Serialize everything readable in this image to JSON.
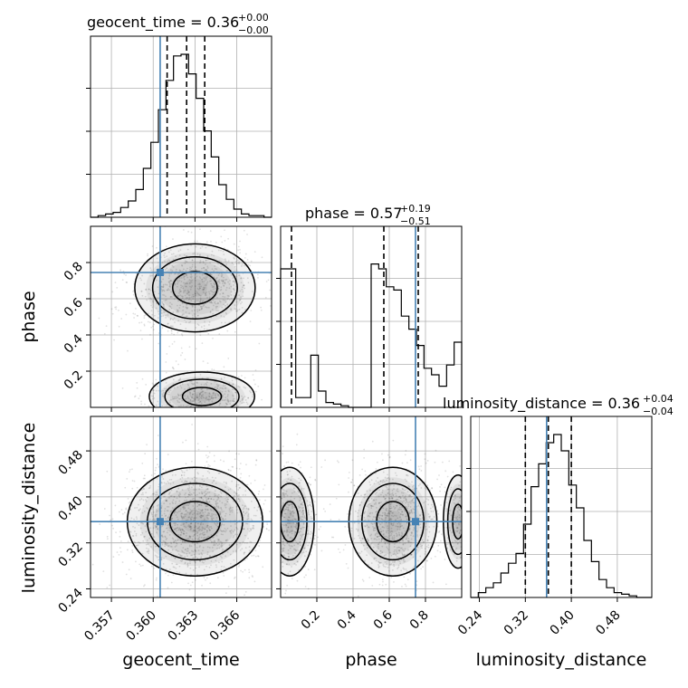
{
  "chart_data": {
    "type": "corner",
    "parameters": [
      "geocent_time",
      "phase",
      "luminosity_distance"
    ],
    "titles": {
      "geocent_time": {
        "text": "geocent_time = 0.36",
        "sup": "+0.00",
        "sub": "−0.00"
      },
      "phase": {
        "text": "phase = 0.57",
        "sup": "+0.19",
        "sub": "−0.51"
      },
      "luminosity_distance": {
        "text": "luminosity_distance = 0.36",
        "sup": "+0.04",
        "sub": "−0.04"
      }
    },
    "axis_labels": {
      "x_geocent_time": "geocent_time",
      "x_phase": "phase",
      "x_luminosity_distance": "luminosity_distance",
      "y_phase": "phase",
      "y_luminosity_distance": "luminosity_distance"
    },
    "ranges": {
      "geocent_time": [
        0.3555,
        0.3685
      ],
      "phase": [
        0.0,
        1.0
      ],
      "luminosity_distance": [
        0.225,
        0.54
      ]
    },
    "ticks": {
      "geocent_time": [
        "0.357",
        "0.360",
        "0.363",
        "0.366"
      ],
      "phase": [
        "0.2",
        "0.4",
        "0.6",
        "0.8"
      ],
      "luminosity_distance": [
        "0.24",
        "0.32",
        "0.40",
        "0.48"
      ]
    },
    "truths": {
      "geocent_time": 0.3605,
      "phase": 0.745,
      "luminosity_distance": 0.357
    },
    "quantiles": {
      "geocent_time": [
        0.361,
        0.3624,
        0.3637
      ],
      "phase": [
        0.06,
        0.57,
        0.76
      ],
      "luminosity_distance": [
        0.32,
        0.36,
        0.4
      ]
    },
    "histograms": {
      "geocent_time": [
        0.0,
        0.01,
        0.02,
        0.03,
        0.06,
        0.1,
        0.17,
        0.3,
        0.46,
        0.66,
        0.84,
        0.99,
        1.0,
        0.88,
        0.73,
        0.53,
        0.37,
        0.2,
        0.11,
        0.05,
        0.02,
        0.01,
        0.01,
        0.0
      ],
      "phase": [
        0.85,
        0.85,
        0.06,
        0.06,
        0.32,
        0.1,
        0.03,
        0.02,
        0.01,
        0.0,
        0.0,
        0.0,
        0.88,
        0.85,
        0.74,
        0.72,
        0.56,
        0.48,
        0.38,
        0.24,
        0.2,
        0.13,
        0.26,
        0.4
      ],
      "luminosity_distance": [
        0.0,
        0.03,
        0.06,
        0.09,
        0.15,
        0.21,
        0.27,
        0.45,
        0.68,
        0.82,
        0.95,
        1.0,
        0.9,
        0.69,
        0.55,
        0.35,
        0.22,
        0.11,
        0.06,
        0.03,
        0.02,
        0.01,
        0.0,
        0.0
      ]
    },
    "grid": true
  }
}
